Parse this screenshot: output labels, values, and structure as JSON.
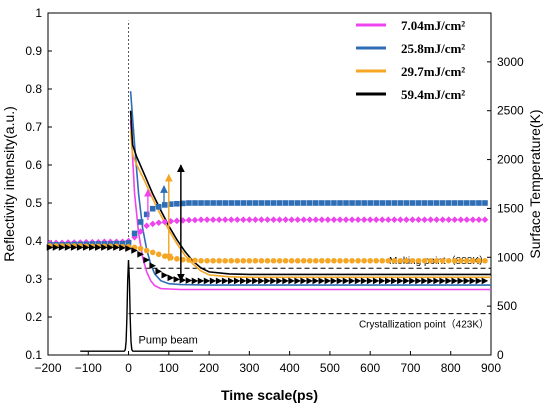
{
  "chart_data": {
    "type": "line",
    "xlabel": "Time scale(ps)",
    "ylabel": "Reflectivity intensity(a.u.)",
    "y2label": "Surface Temperature(K)",
    "xlim": [
      -200,
      900
    ],
    "ylim": [
      0.1,
      1.0
    ],
    "y2lim": [
      0,
      3500
    ],
    "xticks": [
      "−200",
      "−100",
      "0",
      "100",
      "200",
      "300",
      "400",
      "500",
      "600",
      "700",
      "800",
      "900"
    ],
    "xtick_values": [
      -200,
      -100,
      0,
      100,
      200,
      300,
      400,
      500,
      600,
      700,
      800,
      900
    ],
    "yticks": [
      "0.1",
      "0.2",
      "0.3",
      "0.4",
      "0.5",
      "0.6",
      "0.7",
      "0.8",
      "0.9",
      "1"
    ],
    "ytick_values": [
      0.1,
      0.2,
      0.3,
      0.4,
      0.5,
      0.6,
      0.7,
      0.8,
      0.9,
      1.0
    ],
    "y2ticks": [
      "0",
      "500",
      "1000",
      "1500",
      "2000",
      "2500",
      "3000"
    ],
    "y2tick_values": [
      0,
      500,
      1000,
      1500,
      2000,
      2500,
      3000
    ],
    "grid": false,
    "legend_position": "top-right",
    "legend_order": [
      "7.04mJ/cm²",
      "25.8mJ/cm²",
      "29.7mJ/cm²",
      "59.4mJ/cm²"
    ],
    "series": [
      {
        "name": "7.04mJ/cm²",
        "color": "#ee44ee",
        "reflectivity_x": [
          -195,
          -180,
          -165,
          -150,
          -135,
          -120,
          -105,
          -90,
          -75,
          -60,
          -45,
          -30,
          -15,
          0,
          15,
          30,
          45,
          60,
          75,
          90,
          105,
          120,
          135,
          150,
          165,
          180,
          195,
          210,
          225,
          240,
          255,
          270,
          285,
          300,
          315,
          330,
          345,
          360,
          375,
          390,
          405,
          420,
          435,
          450,
          465,
          480,
          495,
          510,
          525,
          540,
          555,
          570,
          585,
          600,
          615,
          630,
          645,
          660,
          675,
          690,
          705,
          720,
          735,
          750,
          765,
          780,
          795,
          810,
          825,
          840,
          855,
          870,
          885
        ],
        "reflectivity_y": [
          0.395,
          0.395,
          0.395,
          0.396,
          0.396,
          0.396,
          0.397,
          0.397,
          0.397,
          0.398,
          0.398,
          0.398,
          0.398,
          0.4,
          0.41,
          0.425,
          0.44,
          0.445,
          0.448,
          0.45,
          0.452,
          0.453,
          0.454,
          0.455,
          0.455,
          0.456,
          0.456,
          0.456,
          0.456,
          0.456,
          0.456,
          0.456,
          0.456,
          0.456,
          0.456,
          0.456,
          0.456,
          0.456,
          0.456,
          0.456,
          0.456,
          0.456,
          0.456,
          0.456,
          0.456,
          0.456,
          0.456,
          0.456,
          0.456,
          0.456,
          0.456,
          0.456,
          0.456,
          0.456,
          0.456,
          0.456,
          0.456,
          0.456,
          0.456,
          0.456,
          0.456,
          0.456,
          0.456,
          0.456,
          0.456,
          0.456,
          0.456,
          0.456,
          0.456,
          0.456,
          0.456,
          0.456,
          0.456
        ],
        "temperature_x": [
          5,
          15,
          25,
          35,
          45,
          55,
          65,
          80,
          100,
          130,
          200,
          300,
          400,
          500,
          600,
          700,
          800,
          900
        ],
        "temperature_y": [
          2400,
          1650,
          1250,
          1000,
          850,
          760,
          710,
          680,
          675,
          670,
          670,
          670,
          670,
          670,
          670,
          670,
          670,
          670
        ]
      },
      {
        "name": "25.8mJ/cm²",
        "color": "#2f6db5",
        "reflectivity_x": [
          -195,
          -180,
          -165,
          -150,
          -135,
          -120,
          -105,
          -90,
          -75,
          -60,
          -45,
          -30,
          -15,
          0,
          15,
          30,
          45,
          60,
          75,
          90,
          105,
          120,
          135,
          150,
          165,
          180,
          195,
          210,
          225,
          240,
          255,
          270,
          285,
          300,
          315,
          330,
          345,
          360,
          375,
          390,
          405,
          420,
          435,
          450,
          465,
          480,
          495,
          510,
          525,
          540,
          555,
          570,
          585,
          600,
          615,
          630,
          645,
          660,
          675,
          690,
          705,
          720,
          735,
          750,
          765,
          780,
          795,
          810,
          825,
          840,
          855,
          870,
          885
        ],
        "reflectivity_y": [
          0.39,
          0.39,
          0.39,
          0.39,
          0.391,
          0.391,
          0.391,
          0.392,
          0.392,
          0.392,
          0.392,
          0.393,
          0.393,
          0.395,
          0.42,
          0.45,
          0.47,
          0.485,
          0.49,
          0.495,
          0.497,
          0.498,
          0.499,
          0.5,
          0.5,
          0.5,
          0.5,
          0.5,
          0.5,
          0.5,
          0.5,
          0.5,
          0.5,
          0.5,
          0.5,
          0.5,
          0.5,
          0.5,
          0.5,
          0.5,
          0.5,
          0.5,
          0.5,
          0.5,
          0.5,
          0.5,
          0.5,
          0.5,
          0.5,
          0.5,
          0.5,
          0.5,
          0.5,
          0.5,
          0.5,
          0.5,
          0.5,
          0.5,
          0.5,
          0.5,
          0.5,
          0.5,
          0.5,
          0.5,
          0.5,
          0.5,
          0.5,
          0.5,
          0.5,
          0.5,
          0.5,
          0.5,
          0.5
        ],
        "temperature_x": [
          5,
          15,
          25,
          35,
          45,
          55,
          65,
          80,
          100,
          130,
          200,
          300,
          400,
          500,
          600,
          700,
          800,
          900
        ],
        "temperature_y": [
          2700,
          2150,
          1650,
          1300,
          1080,
          930,
          830,
          760,
          730,
          720,
          715,
          715,
          715,
          715,
          715,
          715,
          715,
          715
        ]
      },
      {
        "name": "29.7mJ/cm²",
        "color": "#f5a623",
        "reflectivity_x": [
          -195,
          -180,
          -165,
          -150,
          -135,
          -120,
          -105,
          -90,
          -75,
          -60,
          -45,
          -30,
          -15,
          0,
          15,
          30,
          45,
          60,
          75,
          90,
          105,
          120,
          135,
          150,
          165,
          180,
          195,
          210,
          225,
          240,
          255,
          270,
          285,
          300,
          315,
          330,
          345,
          360,
          375,
          390,
          405,
          420,
          435,
          450,
          465,
          480,
          495,
          510,
          525,
          540,
          555,
          570,
          585,
          600,
          615,
          630,
          645,
          660,
          675,
          690,
          705,
          720,
          735,
          750,
          765,
          780,
          795,
          810,
          825,
          840,
          855,
          870,
          885
        ],
        "reflectivity_y": [
          0.387,
          0.387,
          0.387,
          0.387,
          0.387,
          0.387,
          0.386,
          0.386,
          0.386,
          0.386,
          0.386,
          0.386,
          0.385,
          0.385,
          0.383,
          0.38,
          0.375,
          0.37,
          0.365,
          0.36,
          0.356,
          0.353,
          0.351,
          0.35,
          0.349,
          0.348,
          0.348,
          0.348,
          0.348,
          0.348,
          0.348,
          0.348,
          0.348,
          0.348,
          0.348,
          0.348,
          0.348,
          0.348,
          0.348,
          0.348,
          0.348,
          0.348,
          0.348,
          0.348,
          0.348,
          0.348,
          0.348,
          0.348,
          0.348,
          0.348,
          0.348,
          0.348,
          0.348,
          0.348,
          0.348,
          0.348,
          0.348,
          0.348,
          0.348,
          0.348,
          0.348,
          0.348,
          0.348,
          0.348,
          0.348,
          0.348,
          0.348,
          0.348,
          0.348,
          0.348,
          0.348,
          0.348,
          0.348
        ],
        "temperature_x": [
          5,
          10,
          20,
          40,
          60,
          80,
          100,
          120,
          140,
          160,
          180,
          200,
          250,
          300,
          400,
          500,
          600,
          700,
          800,
          900
        ],
        "temperature_y": [
          2300,
          2050,
          1950,
          1780,
          1600,
          1430,
          1280,
          1140,
          1020,
          930,
          860,
          820,
          800,
          795,
          795,
          795,
          795,
          795,
          795,
          795
        ]
      },
      {
        "name": "59.4mJ/cm²",
        "color": "#000000",
        "reflectivity_x": [
          -195,
          -180,
          -165,
          -150,
          -135,
          -120,
          -105,
          -90,
          -75,
          -60,
          -45,
          -30,
          -15,
          0,
          15,
          30,
          45,
          60,
          75,
          90,
          105,
          120,
          135,
          150,
          165,
          180,
          195,
          210,
          225,
          240,
          255,
          270,
          285,
          300,
          315,
          330,
          345,
          360,
          375,
          390,
          405,
          420,
          435,
          450,
          465,
          480,
          495,
          510,
          525,
          540,
          555,
          570,
          585,
          600,
          615,
          630,
          645,
          660,
          675,
          690,
          705,
          720,
          735,
          750,
          765,
          780,
          795,
          810,
          825,
          840,
          855,
          870,
          885
        ],
        "reflectivity_y": [
          0.383,
          0.383,
          0.383,
          0.383,
          0.383,
          0.383,
          0.383,
          0.383,
          0.383,
          0.383,
          0.383,
          0.383,
          0.382,
          0.38,
          0.375,
          0.365,
          0.35,
          0.335,
          0.32,
          0.31,
          0.303,
          0.299,
          0.297,
          0.296,
          0.295,
          0.295,
          0.295,
          0.295,
          0.295,
          0.295,
          0.295,
          0.295,
          0.295,
          0.295,
          0.295,
          0.295,
          0.295,
          0.295,
          0.295,
          0.295,
          0.295,
          0.295,
          0.295,
          0.295,
          0.295,
          0.295,
          0.295,
          0.295,
          0.295,
          0.295,
          0.295,
          0.295,
          0.295,
          0.295,
          0.295,
          0.295,
          0.295,
          0.295,
          0.295,
          0.295,
          0.295,
          0.295,
          0.295,
          0.295,
          0.295,
          0.295,
          0.295,
          0.295,
          0.295,
          0.295,
          0.295,
          0.295,
          0.295
        ],
        "temperature_x": [
          5,
          10,
          20,
          40,
          60,
          80,
          100,
          120,
          140,
          160,
          180,
          200,
          250,
          300,
          400,
          500,
          600,
          700,
          800,
          900
        ],
        "temperature_y": [
          2500,
          2150,
          2030,
          1840,
          1650,
          1480,
          1320,
          1180,
          1060,
          960,
          890,
          850,
          830,
          825,
          825,
          825,
          825,
          825,
          825,
          825
        ]
      }
    ],
    "reference_lines": [
      {
        "label": "Melting point（888K）",
        "temperature": 888
      },
      {
        "label": "Crystallization point（423K）",
        "temperature": 423
      }
    ],
    "pump_beam": {
      "label": "Pump beam",
      "center": 0,
      "peak": 0.35,
      "baseline": 0.11
    },
    "pump_marker": {
      "x": 0,
      "y_from": 0.4,
      "y_to": 0.98
    },
    "arrows": [
      {
        "color": "#ee44ee",
        "x": 48,
        "y_from": 0.455,
        "y_to": 0.535
      },
      {
        "color": "#2f6db5",
        "x": 88,
        "y_from": 0.5,
        "y_to": 0.545
      },
      {
        "color": "#f5a623",
        "x": 100,
        "y_from": 0.348,
        "y_to": 0.575
      },
      {
        "color": "#f5a623",
        "x": 100,
        "y_from": 0.575,
        "y_to": 0.348
      },
      {
        "color": "#000000",
        "x": 130,
        "y_from": 0.295,
        "y_to": 0.6
      },
      {
        "color": "#000000",
        "x": 130,
        "y_from": 0.6,
        "y_to": 0.295
      }
    ]
  }
}
